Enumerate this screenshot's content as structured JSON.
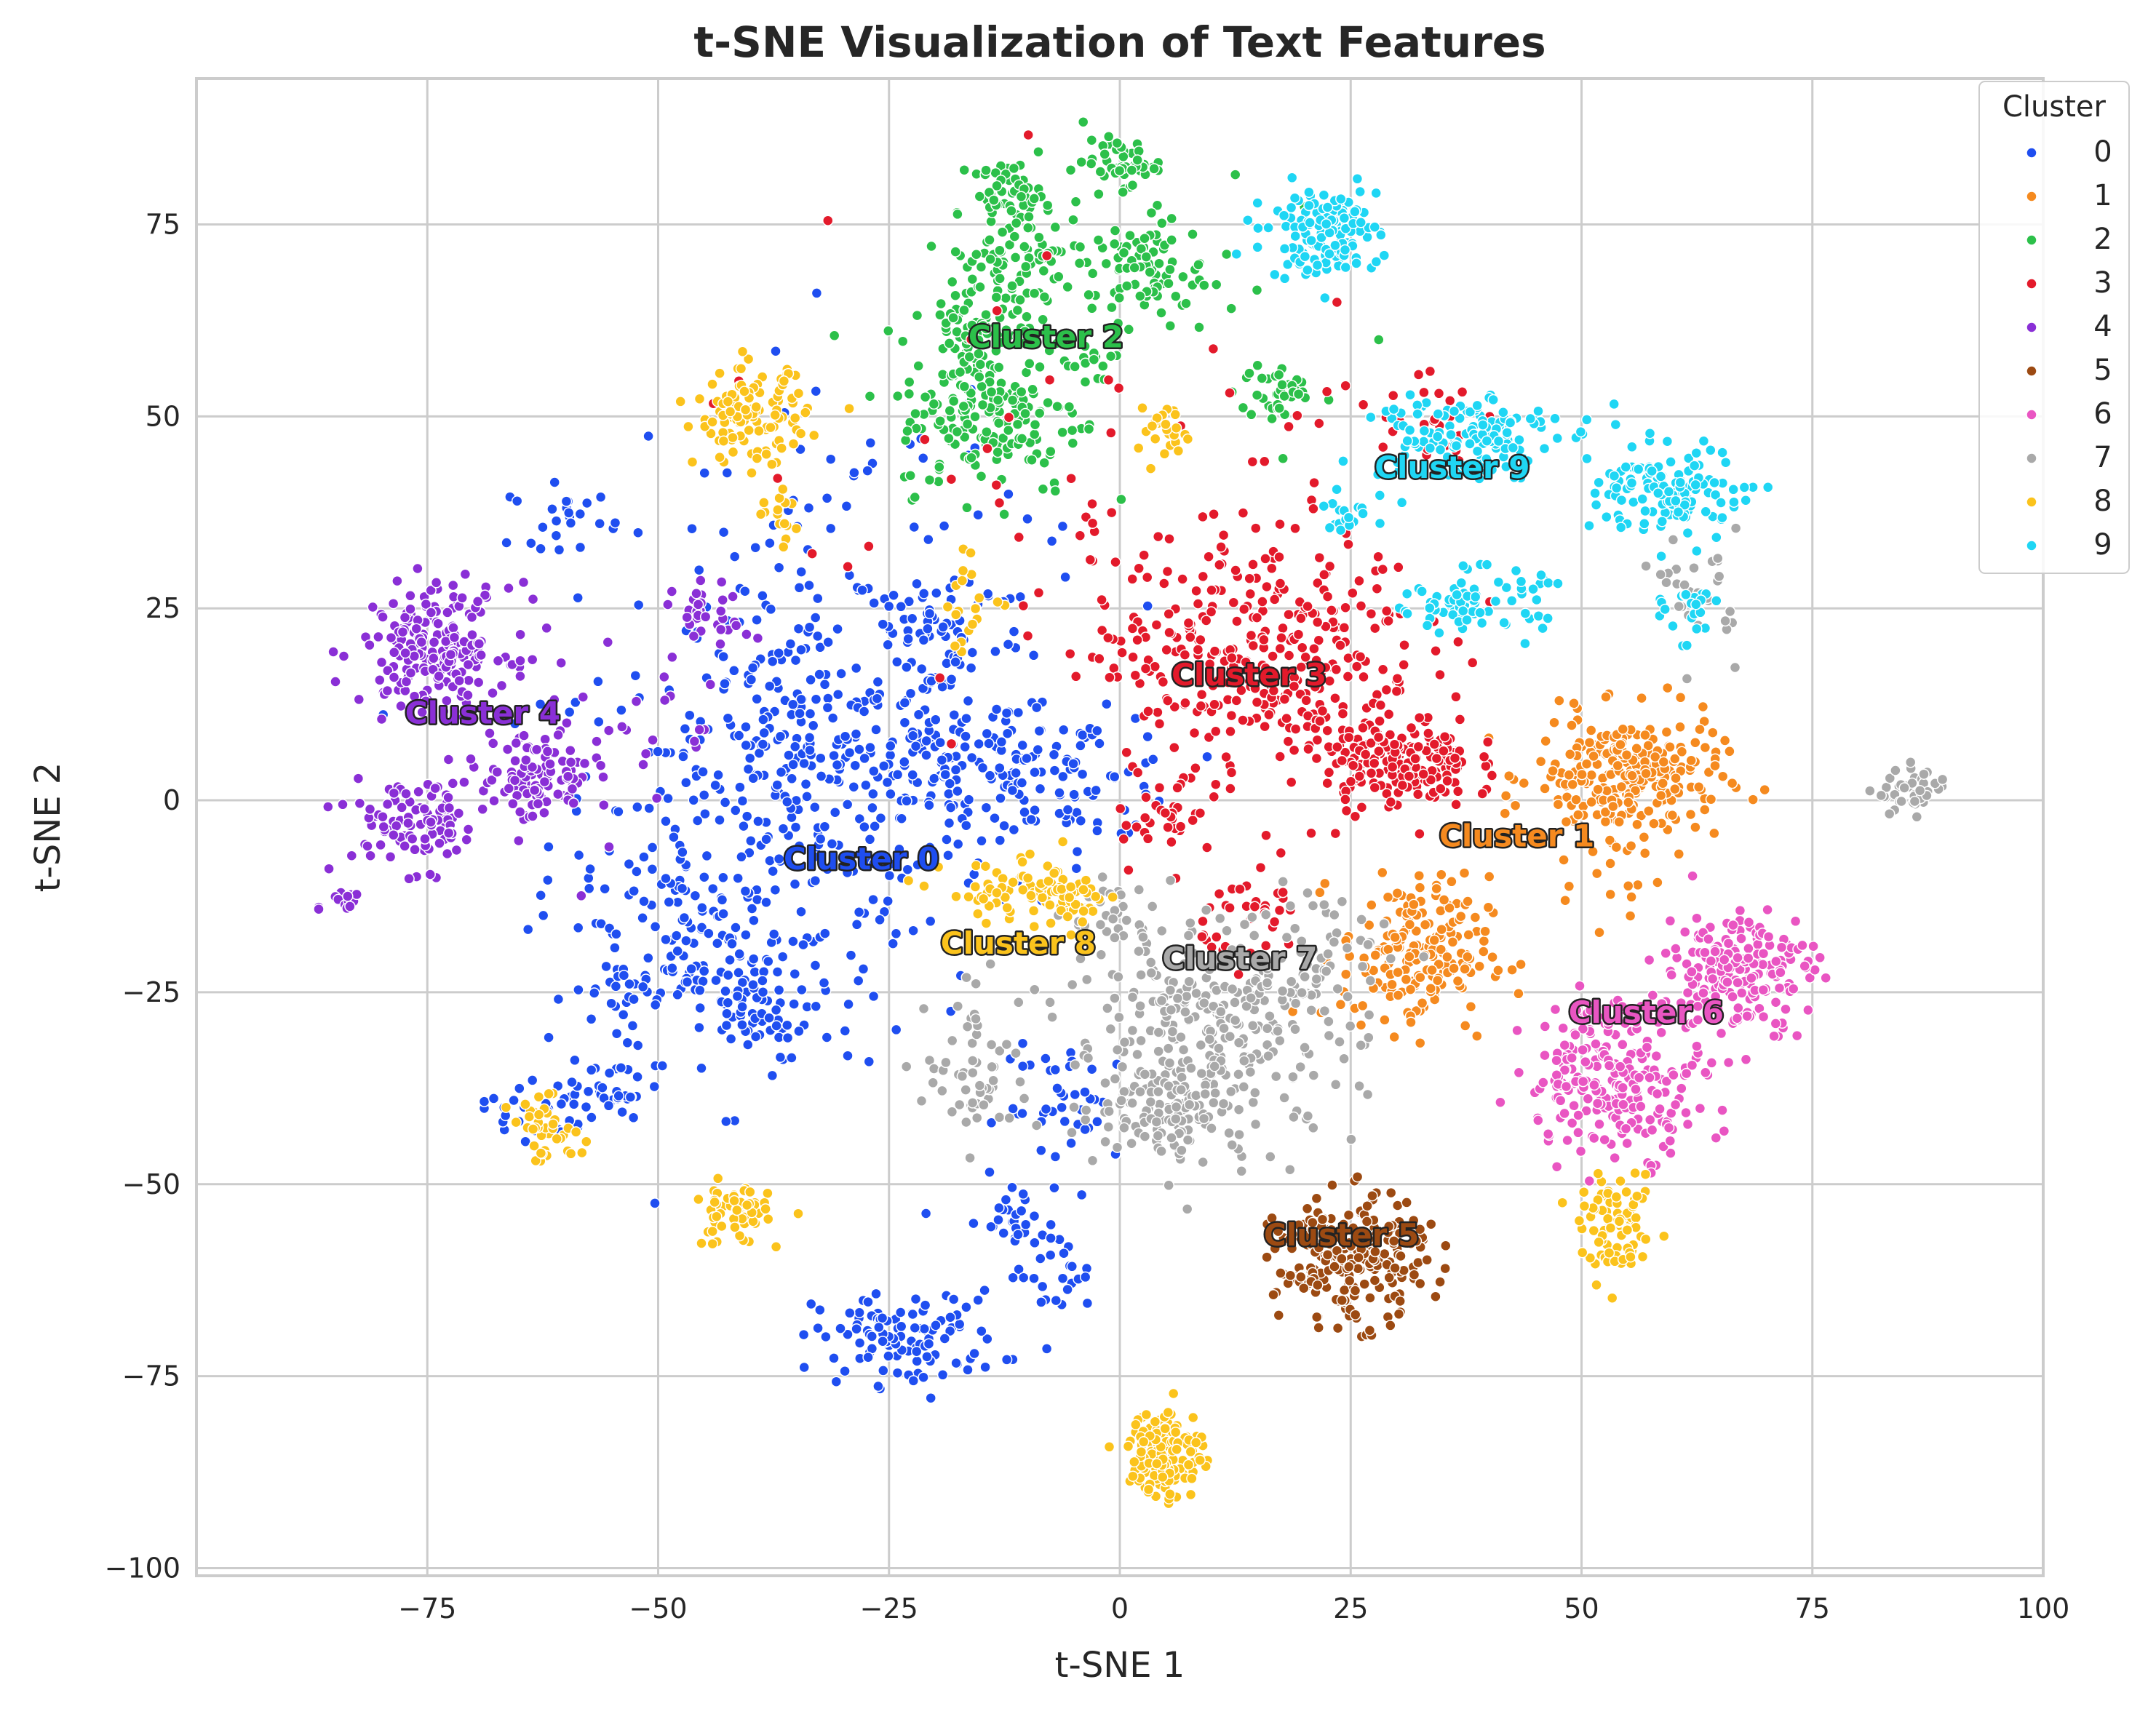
{
  "chart_data": {
    "type": "scatter",
    "title": "t-SNE Visualization of Text Features",
    "xlabel": "t-SNE 1",
    "ylabel": "t-SNE 2",
    "xlim": [
      -100,
      100
    ],
    "ylim": [
      -101,
      94
    ],
    "xticks": [
      -75,
      -50,
      -25,
      0,
      25,
      50,
      75,
      100
    ],
    "yticks": [
      -100,
      -75,
      -50,
      -25,
      0,
      25,
      50,
      75
    ],
    "xtick_labels": [
      "−75",
      "−50",
      "−25",
      "0",
      "25",
      "50",
      "75",
      "100"
    ],
    "ytick_labels": [
      "−100",
      "−75",
      "−50",
      "−25",
      "0",
      "25",
      "50",
      "75"
    ],
    "grid": true,
    "legend": {
      "title": "Cluster",
      "position": "top-right"
    },
    "series": [
      {
        "name": "0",
        "color": "#1f4ef0",
        "label": "Cluster 0",
        "label_pos": [
          -28,
          -9
        ],
        "groups": [
          [
            -38,
            -5,
            12,
            14,
            330
          ],
          [
            -18,
            5,
            6,
            5,
            110
          ],
          [
            -5,
            3,
            6,
            4,
            90
          ],
          [
            -35,
            10,
            5,
            6,
            70
          ],
          [
            -20,
            22,
            5,
            5,
            70
          ],
          [
            -47,
            -18,
            4,
            6,
            70
          ],
          [
            -40,
            -28,
            3,
            3,
            55
          ],
          [
            -63,
            -40,
            3,
            2,
            35
          ],
          [
            -55,
            -38,
            2,
            3,
            30
          ],
          [
            -23,
            -70,
            5,
            3,
            110
          ],
          [
            -12,
            -55,
            3,
            3,
            30
          ],
          [
            -7,
            -62,
            2,
            3,
            25
          ],
          [
            -5,
            -40,
            4,
            4,
            40
          ],
          [
            -53,
            -25,
            1.5,
            2,
            15
          ],
          [
            -60,
            37,
            3,
            2,
            25
          ],
          [
            -30,
            30,
            12,
            15,
            90
          ]
        ]
      },
      {
        "name": "1",
        "color": "#f58a1f",
        "label": "Cluster 1",
        "label_pos": [
          43,
          -6
        ],
        "groups": [
          [
            55,
            3,
            5,
            4,
            260
          ],
          [
            32,
            -20,
            4,
            5,
            190
          ],
          [
            53,
            -10,
            3,
            3,
            15
          ]
        ]
      },
      {
        "name": "2",
        "color": "#2cc04a",
        "label": "Cluster 2",
        "label_pos": [
          -8,
          59
        ],
        "groups": [
          [
            -14,
            50,
            5,
            5,
            170
          ],
          [
            -15,
            62,
            3,
            3,
            70
          ],
          [
            -12,
            70,
            4,
            3,
            65
          ],
          [
            -12,
            79,
            2,
            2,
            50
          ],
          [
            3,
            69,
            3,
            3,
            70
          ],
          [
            0,
            83,
            2,
            1.5,
            45
          ],
          [
            17,
            53,
            2,
            2,
            35
          ],
          [
            -3,
            57,
            1.5,
            2,
            15
          ],
          [
            -5,
            70,
            10,
            10,
            40
          ]
        ]
      },
      {
        "name": "3",
        "color": "#e31a2b",
        "label": "Cluster 3",
        "label_pos": [
          14,
          15
        ],
        "groups": [
          [
            15,
            20,
            9,
            8,
            330
          ],
          [
            30,
            5,
            4,
            3,
            200
          ],
          [
            5,
            -2,
            3,
            3,
            35
          ],
          [
            15,
            -15,
            3,
            3,
            35
          ],
          [
            35,
            48,
            4,
            3,
            25
          ],
          [
            0,
            35,
            25,
            20,
            60
          ]
        ]
      },
      {
        "name": "4",
        "color": "#8a2fd6",
        "label": "Cluster 4",
        "label_pos": [
          -69,
          10
        ],
        "groups": [
          [
            -74,
            20,
            4,
            4,
            200
          ],
          [
            -76,
            -3,
            4,
            3,
            100
          ],
          [
            -63,
            3,
            3,
            3,
            100
          ],
          [
            -44,
            24,
            2,
            2,
            35
          ],
          [
            -84,
            -13,
            1,
            1,
            15
          ],
          [
            -55,
            10,
            8,
            8,
            25
          ]
        ]
      },
      {
        "name": "5",
        "color": "#9c4a12",
        "label": "Cluster 5",
        "label_pos": [
          24,
          -58
        ],
        "groups": [
          [
            25,
            -60,
            4,
            4,
            240
          ]
        ]
      },
      {
        "name": "6",
        "color": "#e955c2",
        "label": "Cluster 6",
        "label_pos": [
          57,
          -29
        ],
        "groups": [
          [
            54,
            -36,
            5,
            5,
            240
          ],
          [
            67,
            -22,
            4,
            4,
            190
          ]
        ]
      },
      {
        "name": "7",
        "color": "#a9a9a9",
        "label": "Cluster 7",
        "label_pos": [
          13,
          -22
        ],
        "groups": [
          [
            10,
            -30,
            8,
            7,
            300
          ],
          [
            5,
            -40,
            4,
            3,
            100
          ],
          [
            -15,
            -35,
            3,
            5,
            60
          ],
          [
            -2,
            -15,
            3,
            2,
            30
          ],
          [
            86,
            1,
            2,
            1.5,
            45
          ],
          [
            63,
            27,
            2,
            4,
            30
          ],
          [
            22,
            -20,
            4,
            5,
            40
          ]
        ]
      },
      {
        "name": "8",
        "color": "#fbc31c",
        "label": "Cluster 8",
        "label_pos": [
          -11,
          -20
        ],
        "groups": [
          [
            -40,
            50,
            3,
            3,
            120
          ],
          [
            -37,
            37,
            1.5,
            2,
            15
          ],
          [
            -11,
            -12,
            4,
            2,
            60
          ],
          [
            -5,
            -13,
            2,
            2,
            40
          ],
          [
            -42,
            -54,
            2,
            2,
            60
          ],
          [
            -62,
            -43,
            2,
            2,
            40
          ],
          [
            5,
            -85,
            2,
            3,
            140
          ],
          [
            54,
            -56,
            2,
            3,
            90
          ],
          [
            5,
            48,
            2,
            2,
            25
          ],
          [
            -16,
            25,
            2,
            3,
            20
          ]
        ]
      },
      {
        "name": "9",
        "color": "#1fd6f4",
        "label": "Cluster 9",
        "label_pos": [
          36,
          42
        ],
        "groups": [
          [
            22,
            74,
            3,
            3,
            140
          ],
          [
            37,
            48,
            5,
            3,
            130
          ],
          [
            60,
            40,
            4,
            3,
            130
          ],
          [
            38,
            26,
            4,
            2,
            80
          ],
          [
            62,
            25,
            1.5,
            2,
            25
          ],
          [
            25,
            37,
            2,
            2,
            20
          ]
        ]
      }
    ]
  }
}
